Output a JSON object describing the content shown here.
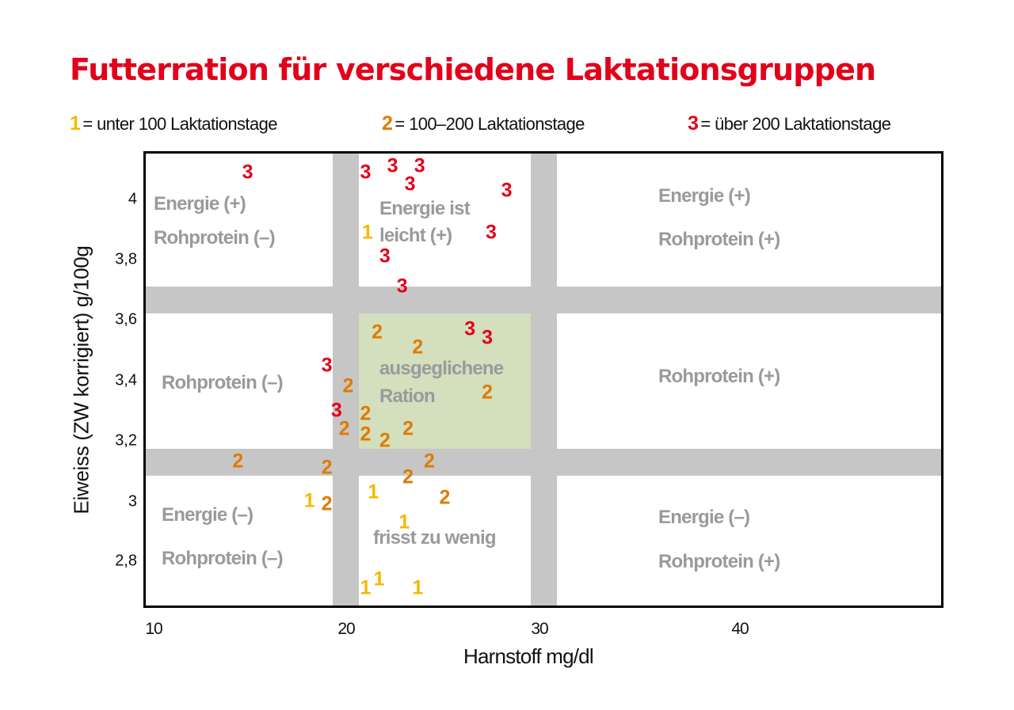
{
  "title": "Futterration für verschiedene Laktationsgruppen",
  "legend": [
    {
      "symbol": "1",
      "label": "= unter 100 Laktationstage",
      "color": "#f6b800"
    },
    {
      "symbol": "2",
      "label": "= 100–200 Laktationstage",
      "color": "#e07b00"
    },
    {
      "symbol": "3",
      "label": "= über 200 Laktationstage",
      "color": "#e2001a"
    }
  ],
  "axes": {
    "xlabel": "Harnstoff mg/dl",
    "ylabel": "Eiweiss (ZW korrigiert) g/100g",
    "xticks": [
      "10",
      "20",
      "30",
      "40"
    ],
    "yticks": [
      "4",
      "3,8",
      "3,6",
      "3,4",
      "3,2",
      "3",
      "2,8"
    ]
  },
  "zones": {
    "top_left": [
      "Energie (+)",
      "Rohprotein (–)"
    ],
    "top_middle": [
      "Energie ist",
      "leicht (+)"
    ],
    "top_right": [
      "Energie (+)",
      "Rohprotein (+)"
    ],
    "mid_left": [
      "Rohprotein (–)"
    ],
    "mid_middle": [
      "ausgeglichene",
      "Ration"
    ],
    "mid_right": [
      "Rohprotein (+)"
    ],
    "bottom_left": [
      "Energie (–)",
      "Rohprotein (–)"
    ],
    "bottom_middle": [
      "frisst zu wenig"
    ],
    "bottom_right": [
      "Energie (–)",
      "Rohprotein (+)"
    ]
  },
  "colors": {
    "title": "#e2001a",
    "group1": "#f6b800",
    "group2": "#e07b00",
    "group3": "#e2001a",
    "band": "#c6c6c6",
    "balanced_zone": "#d3dfbd",
    "zone_text": "#9a9a9a"
  },
  "chart_data": {
    "type": "scatter",
    "title": "Futterration für verschiedene Laktationsgruppen",
    "xlabel": "Harnstoff mg/dl",
    "ylabel": "Eiweiss (ZW korrigiert) g/100g",
    "xlim": [
      10,
      51
    ],
    "ylim": [
      2.65,
      4.15
    ],
    "xticks": [
      10,
      20,
      30,
      40
    ],
    "yticks": [
      2.8,
      3.0,
      3.2,
      3.4,
      3.6,
      3.8,
      4.0
    ],
    "grid": false,
    "legend_position": "top",
    "reference_bands": {
      "x": [
        [
          19.1,
          20.5
        ],
        [
          29.4,
          30.7
        ]
      ],
      "y": [
        [
          3.62,
          3.71
        ],
        [
          3.09,
          3.17
        ]
      ],
      "balanced_region": {
        "x": [
          20.5,
          29.4
        ],
        "y": [
          3.17,
          3.62
        ]
      }
    },
    "series": [
      {
        "name": "1 = unter 100 Laktationstage",
        "marker": "1",
        "color": "#f6b800",
        "points": [
          {
            "x": 21.1,
            "y": 3.89
          },
          {
            "x": 18.1,
            "y": 3.0
          },
          {
            "x": 21.4,
            "y": 3.03
          },
          {
            "x": 23.0,
            "y": 2.93
          },
          {
            "x": 21.0,
            "y": 2.71
          },
          {
            "x": 21.7,
            "y": 2.74
          },
          {
            "x": 23.7,
            "y": 2.71
          }
        ]
      },
      {
        "name": "2 = 100–200 Laktationstage",
        "marker": "2",
        "color": "#e07b00",
        "points": [
          {
            "x": 21.6,
            "y": 3.56
          },
          {
            "x": 23.7,
            "y": 3.51
          },
          {
            "x": 20.1,
            "y": 3.38
          },
          {
            "x": 27.3,
            "y": 3.36
          },
          {
            "x": 21.0,
            "y": 3.29
          },
          {
            "x": 19.9,
            "y": 3.24
          },
          {
            "x": 21.0,
            "y": 3.22
          },
          {
            "x": 23.2,
            "y": 3.24
          },
          {
            "x": 22.0,
            "y": 3.2
          },
          {
            "x": 14.4,
            "y": 3.13
          },
          {
            "x": 19.0,
            "y": 3.11
          },
          {
            "x": 24.3,
            "y": 3.13
          },
          {
            "x": 23.2,
            "y": 3.08
          },
          {
            "x": 19.0,
            "y": 2.99
          },
          {
            "x": 25.1,
            "y": 3.01
          }
        ]
      },
      {
        "name": "3 = über 200 Laktationstage",
        "marker": "3",
        "color": "#e2001a",
        "points": [
          {
            "x": 14.9,
            "y": 4.09
          },
          {
            "x": 21.0,
            "y": 4.09
          },
          {
            "x": 22.4,
            "y": 4.11
          },
          {
            "x": 23.8,
            "y": 4.11
          },
          {
            "x": 23.3,
            "y": 4.05
          },
          {
            "x": 28.3,
            "y": 4.03
          },
          {
            "x": 27.5,
            "y": 3.89
          },
          {
            "x": 22.0,
            "y": 3.81
          },
          {
            "x": 22.9,
            "y": 3.71
          },
          {
            "x": 26.4,
            "y": 3.57
          },
          {
            "x": 27.3,
            "y": 3.54
          },
          {
            "x": 19.0,
            "y": 3.45
          },
          {
            "x": 19.5,
            "y": 3.3
          }
        ]
      }
    ]
  }
}
